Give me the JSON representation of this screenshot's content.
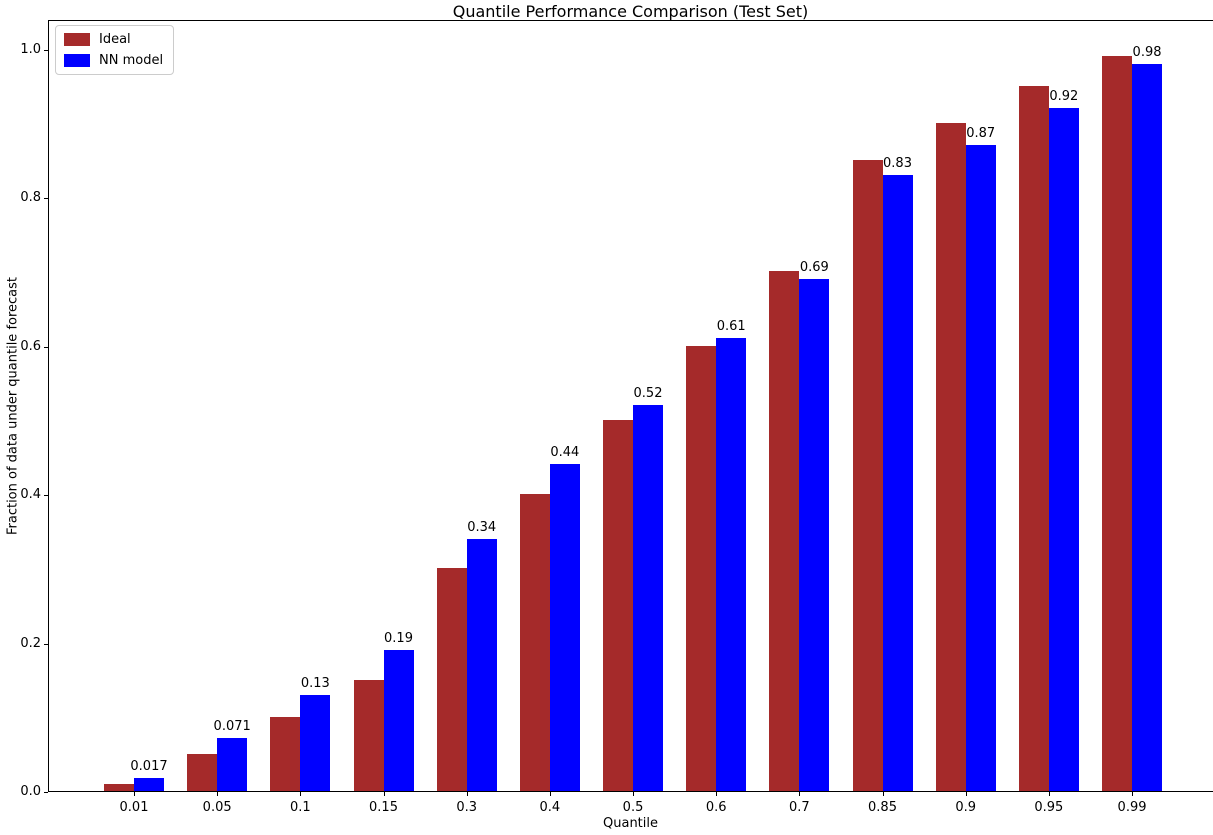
{
  "figure": {
    "background_color": "#ffffff",
    "spine_color": "#000000"
  },
  "chart_data": {
    "type": "bar",
    "title": "Quantile Performance Comparison (Test Set)",
    "xlabel": "Quantile",
    "ylabel": "Fraction of data under quantile forecast",
    "categories": [
      "0.01",
      "0.05",
      "0.1",
      "0.15",
      "0.3",
      "0.4",
      "0.5",
      "0.6",
      "0.7",
      "0.85",
      "0.9",
      "0.95",
      "0.99"
    ],
    "series": [
      {
        "name": "Ideal",
        "color": "#a52a2a",
        "values": [
          0.01,
          0.05,
          0.1,
          0.15,
          0.3,
          0.4,
          0.5,
          0.6,
          0.7,
          0.85,
          0.9,
          0.95,
          0.99
        ]
      },
      {
        "name": "NN model",
        "color": "#0000ff",
        "values": [
          0.017,
          0.071,
          0.13,
          0.19,
          0.34,
          0.44,
          0.52,
          0.61,
          0.69,
          0.83,
          0.87,
          0.92,
          0.98
        ]
      }
    ],
    "bar_value_labels": {
      "series": "NN model",
      "labels": [
        "0.017",
        "0.071",
        "0.13",
        "0.19",
        "0.34",
        "0.44",
        "0.52",
        "0.61",
        "0.69",
        "0.83",
        "0.87",
        "0.92",
        "0.98"
      ]
    },
    "yticks": [
      "0.0",
      "0.2",
      "0.4",
      "0.6",
      "0.8",
      "1.0"
    ],
    "ylim": [
      0,
      1.04
    ],
    "grid": false,
    "legend": {
      "position": "upper left",
      "entries": [
        {
          "label": "Ideal",
          "color": "#a52a2a"
        },
        {
          "label": "NN model",
          "color": "#0000ff"
        }
      ]
    }
  }
}
